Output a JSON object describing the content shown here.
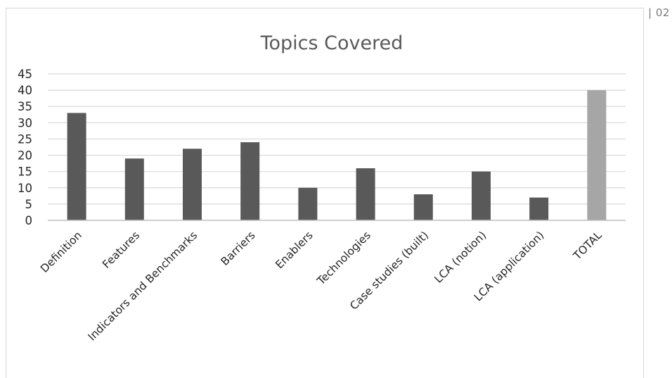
{
  "page_number": "| 02",
  "chart_data": {
    "type": "bar",
    "title": "Topics Covered",
    "xlabel": "",
    "ylabel": "",
    "categories": [
      "Definition",
      "Features",
      "Indicators and Benchmarks",
      "Barriers",
      "Enablers",
      "Technologies",
      "Case studies (built)",
      "LCA (notion)",
      "LCA (application)",
      "TOTAL"
    ],
    "values": [
      33,
      19,
      22,
      24,
      10,
      16,
      8,
      15,
      7,
      40
    ],
    "ylim": [
      0,
      45
    ],
    "yticks": [
      0,
      5,
      10,
      15,
      20,
      25,
      30,
      35,
      40,
      45
    ],
    "grid": true,
    "legend": "none",
    "colors": {
      "bar": "#595959",
      "total_bar": "#a6a6a6",
      "grid": "#d9d9d9",
      "axis": "#bfbfbf"
    }
  }
}
